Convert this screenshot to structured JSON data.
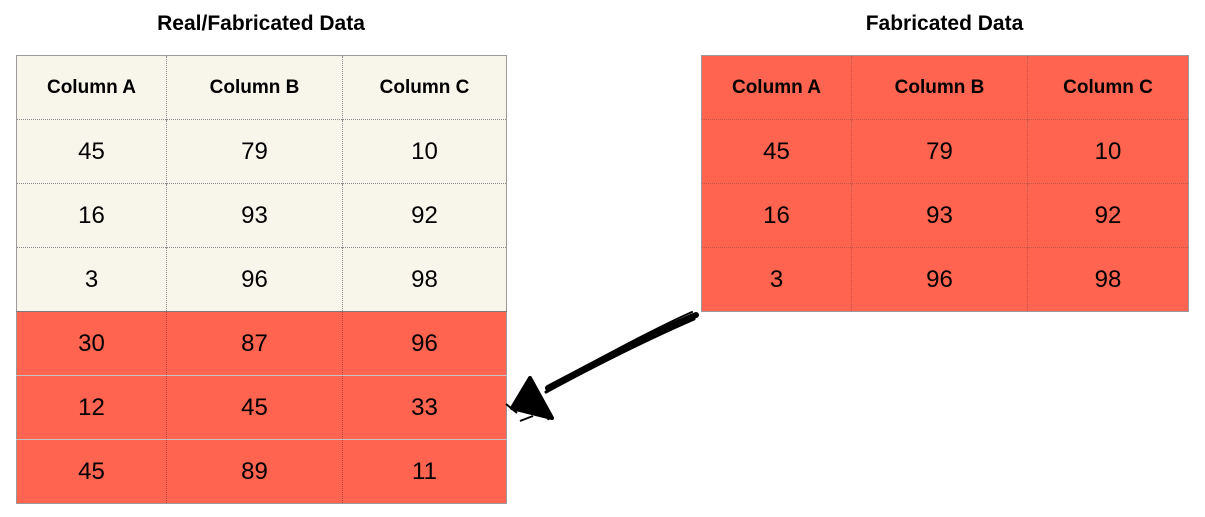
{
  "left_panel": {
    "title": "Real/Fabricated Data",
    "columns": [
      "Column A",
      "Column B",
      "Column C"
    ],
    "real_rows": [
      [
        "45",
        "79",
        "10"
      ],
      [
        "16",
        "93",
        "92"
      ],
      [
        "3",
        "96",
        "98"
      ]
    ],
    "fabricated_rows": [
      [
        "30",
        "87",
        "96"
      ],
      [
        "12",
        "45",
        "33"
      ],
      [
        "45",
        "89",
        "11"
      ]
    ]
  },
  "right_panel": {
    "title": "Fabricated Data",
    "columns": [
      "Column A",
      "Column B",
      "Column C"
    ],
    "rows": [
      [
        "45",
        "79",
        "10"
      ],
      [
        "16",
        "93",
        "92"
      ],
      [
        "3",
        "96",
        "98"
      ]
    ]
  },
  "colors": {
    "real_fill": "#f8f6eb",
    "fabricated_fill": "#fe6450",
    "arrow": "#000000"
  },
  "connector": {
    "icon": "hand-drawn-arrow-icon",
    "from": "right_panel",
    "to": "left_panel.fabricated_rows"
  }
}
